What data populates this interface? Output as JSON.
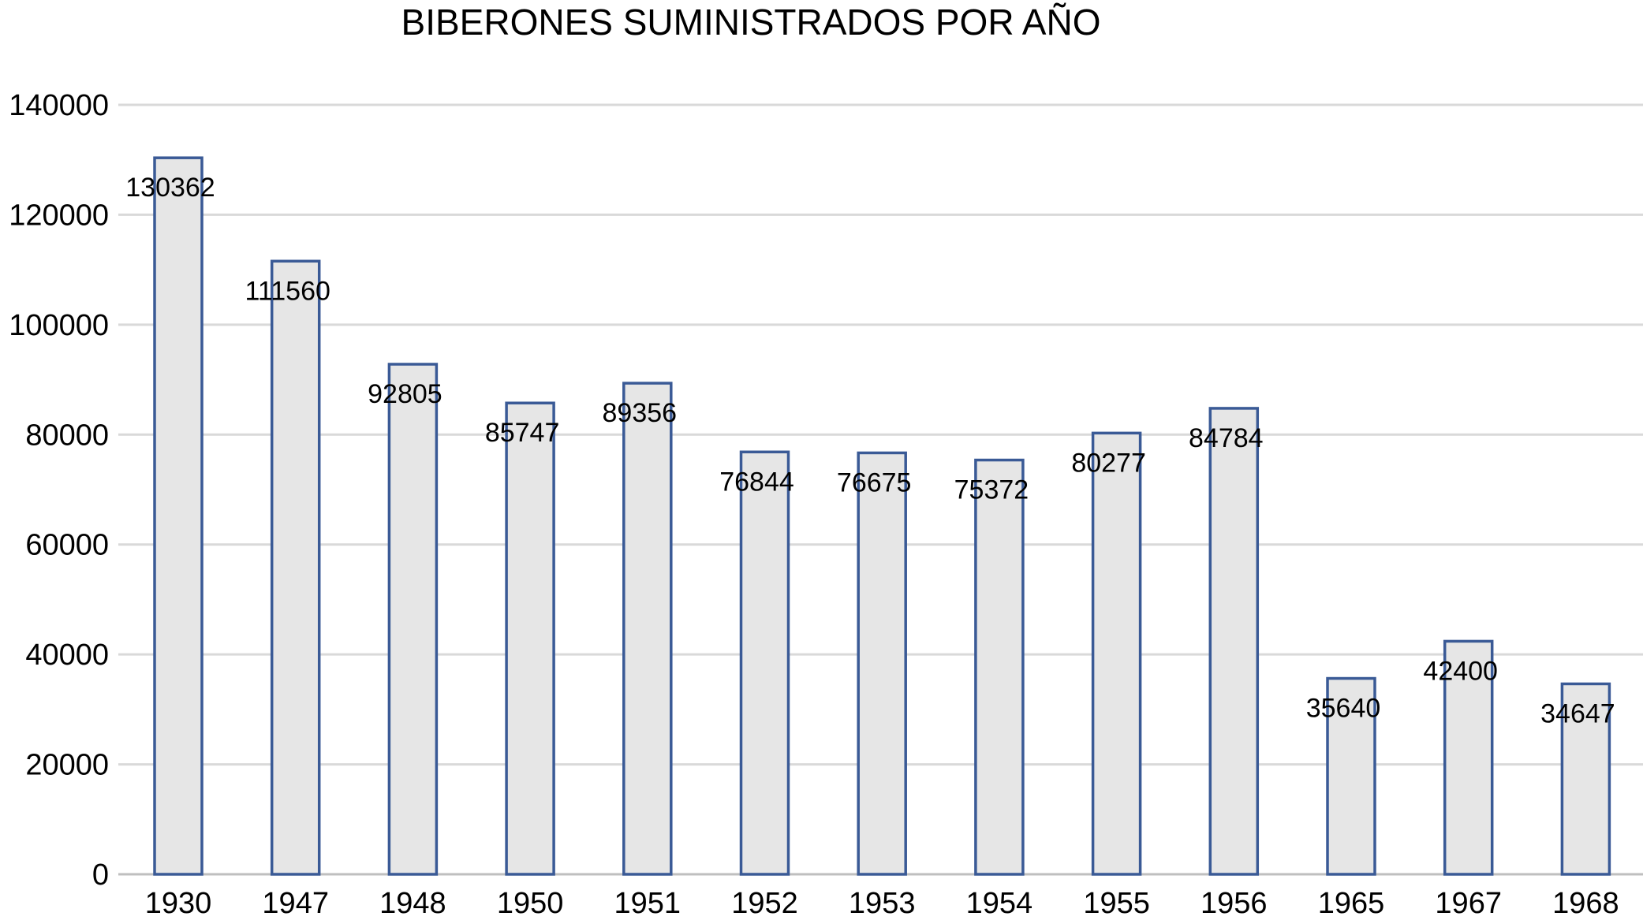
{
  "chart_data": {
    "type": "bar",
    "title": "BIBERONES SUMINISTRADOS POR AÑO",
    "xlabel": "",
    "ylabel": "",
    "categories": [
      "1930",
      "1947",
      "1948",
      "1950",
      "1951",
      "1952",
      "1953",
      "1954",
      "1955",
      "1956",
      "1965",
      "1967",
      "1968"
    ],
    "values": [
      130362,
      111560,
      92805,
      85747,
      89356,
      76844,
      76675,
      75372,
      80277,
      84784,
      35640,
      42400,
      34647
    ],
    "data_labels": [
      "130362",
      "111560",
      "92805",
      "85747",
      "89356",
      "76844",
      "76675",
      "75372",
      "80277",
      "84784",
      "35640",
      "42400",
      "34647"
    ],
    "ylim": [
      0,
      140000
    ],
    "yticks": [
      "0",
      "20000",
      "40000",
      "60000",
      "80000",
      "100000",
      "120000",
      "140000"
    ],
    "grid": true,
    "legend": "none",
    "colors": {
      "bar_fill": "#e6e6e6",
      "bar_stroke": "#3a5a96",
      "grid": "#d9d9d9"
    }
  }
}
